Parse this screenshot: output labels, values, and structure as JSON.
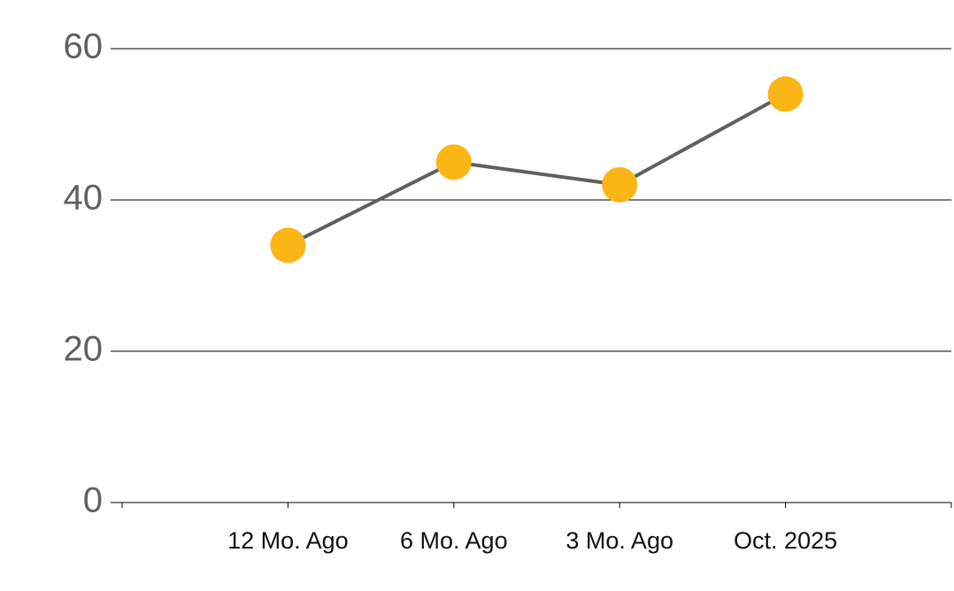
{
  "chart_data": {
    "type": "line",
    "categories": [
      "12 Mo. Ago",
      "6 Mo. Ago",
      "3 Mo. Ago",
      "Oct. 2025"
    ],
    "series": [
      {
        "values": [
          34,
          45,
          42,
          54
        ],
        "color": "#606060",
        "marker_color": "#fbb616"
      }
    ],
    "ylim": [
      0,
      60
    ],
    "yticks": [
      0,
      20,
      40,
      60
    ],
    "grid": true
  }
}
